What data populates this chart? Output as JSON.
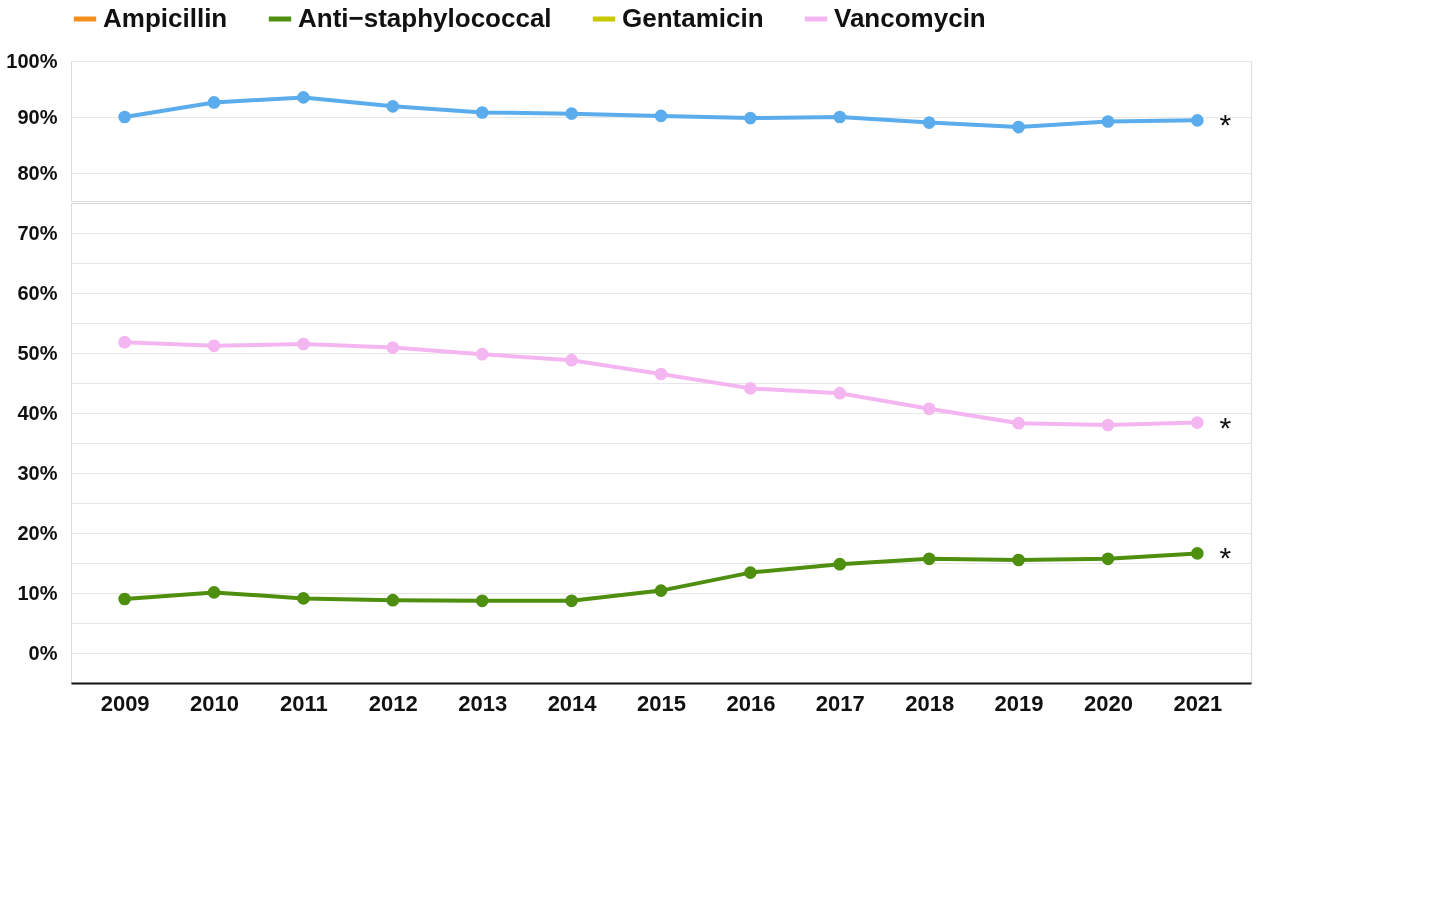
{
  "chart_data": [
    {
      "type": "line",
      "categories": [
        "2009",
        "2010",
        "2011",
        "2012",
        "2013",
        "2014",
        "2015",
        "2016",
        "2017",
        "2018",
        "2019",
        "2020",
        "2021"
      ],
      "series": [
        {
          "color": "#5aacec",
          "values": [
            90.0,
            92.6,
            93.5,
            91.9,
            90.8,
            90.6,
            90.2,
            89.8,
            90.0,
            89.0,
            88.2,
            89.2,
            89.4
          ]
        }
      ],
      "ylim": [
        75,
        100
      ],
      "yticks": [
        {
          "value": 80,
          "label": "80%"
        },
        {
          "value": 90,
          "label": "90%"
        },
        {
          "value": 100,
          "label": "100%"
        }
      ],
      "grid": "y",
      "marker": "circle",
      "tick_labels": "y",
      "legend": false,
      "annotations": [
        {
          "text": "*",
          "x": "2021",
          "y": 89.4
        }
      ]
    },
    {
      "type": "line",
      "categories": [
        "2009",
        "2010",
        "2011",
        "2012",
        "2013",
        "2014",
        "2015",
        "2016",
        "2017",
        "2018",
        "2019",
        "2020",
        "2021"
      ],
      "series": [
        {
          "name": "Ampicillin",
          "color": "#f28e1c",
          "values": [
            null,
            null,
            null,
            null,
            null,
            null,
            null,
            null,
            null,
            null,
            null,
            null,
            null
          ]
        },
        {
          "name": "Anti−staphylococcal",
          "color": "#4e8f0f",
          "values": [
            9.0,
            10.1,
            9.1,
            8.8,
            8.7,
            8.7,
            10.4,
            13.4,
            14.8,
            15.7,
            15.5,
            15.7,
            16.6
          ]
        },
        {
          "name": "Gentamicin",
          "color": "#c8c800",
          "values": [
            null,
            null,
            null,
            null,
            null,
            null,
            null,
            null,
            null,
            null,
            null,
            null,
            null
          ]
        },
        {
          "name": "Vancomycin",
          "color": "#f4b6f0",
          "values": [
            51.8,
            51.2,
            51.5,
            50.9,
            49.8,
            48.8,
            46.5,
            44.1,
            43.3,
            40.7,
            38.3,
            38.0,
            38.4
          ]
        }
      ],
      "ylim": [
        -5,
        75
      ],
      "yticks": [
        {
          "value": 0,
          "label": "0%"
        },
        {
          "value": 5,
          "label": null
        },
        {
          "value": 10,
          "label": "10%"
        },
        {
          "value": 15,
          "label": null
        },
        {
          "value": 20,
          "label": "20%"
        },
        {
          "value": 25,
          "label": null
        },
        {
          "value": 30,
          "label": "30%"
        },
        {
          "value": 35,
          "label": null
        },
        {
          "value": 40,
          "label": "40%"
        },
        {
          "value": 45,
          "label": null
        },
        {
          "value": 50,
          "label": "50%"
        },
        {
          "value": 55,
          "label": null
        },
        {
          "value": 60,
          "label": "60%"
        },
        {
          "value": 65,
          "label": null
        },
        {
          "value": 70,
          "label": "70%"
        }
      ],
      "grid": "y",
      "marker": "circle",
      "legend": "top",
      "annotations": [
        {
          "text": "*",
          "x": "2021",
          "y": 38.4
        },
        {
          "text": "*",
          "x": "2021",
          "y": 16.6
        }
      ]
    }
  ]
}
